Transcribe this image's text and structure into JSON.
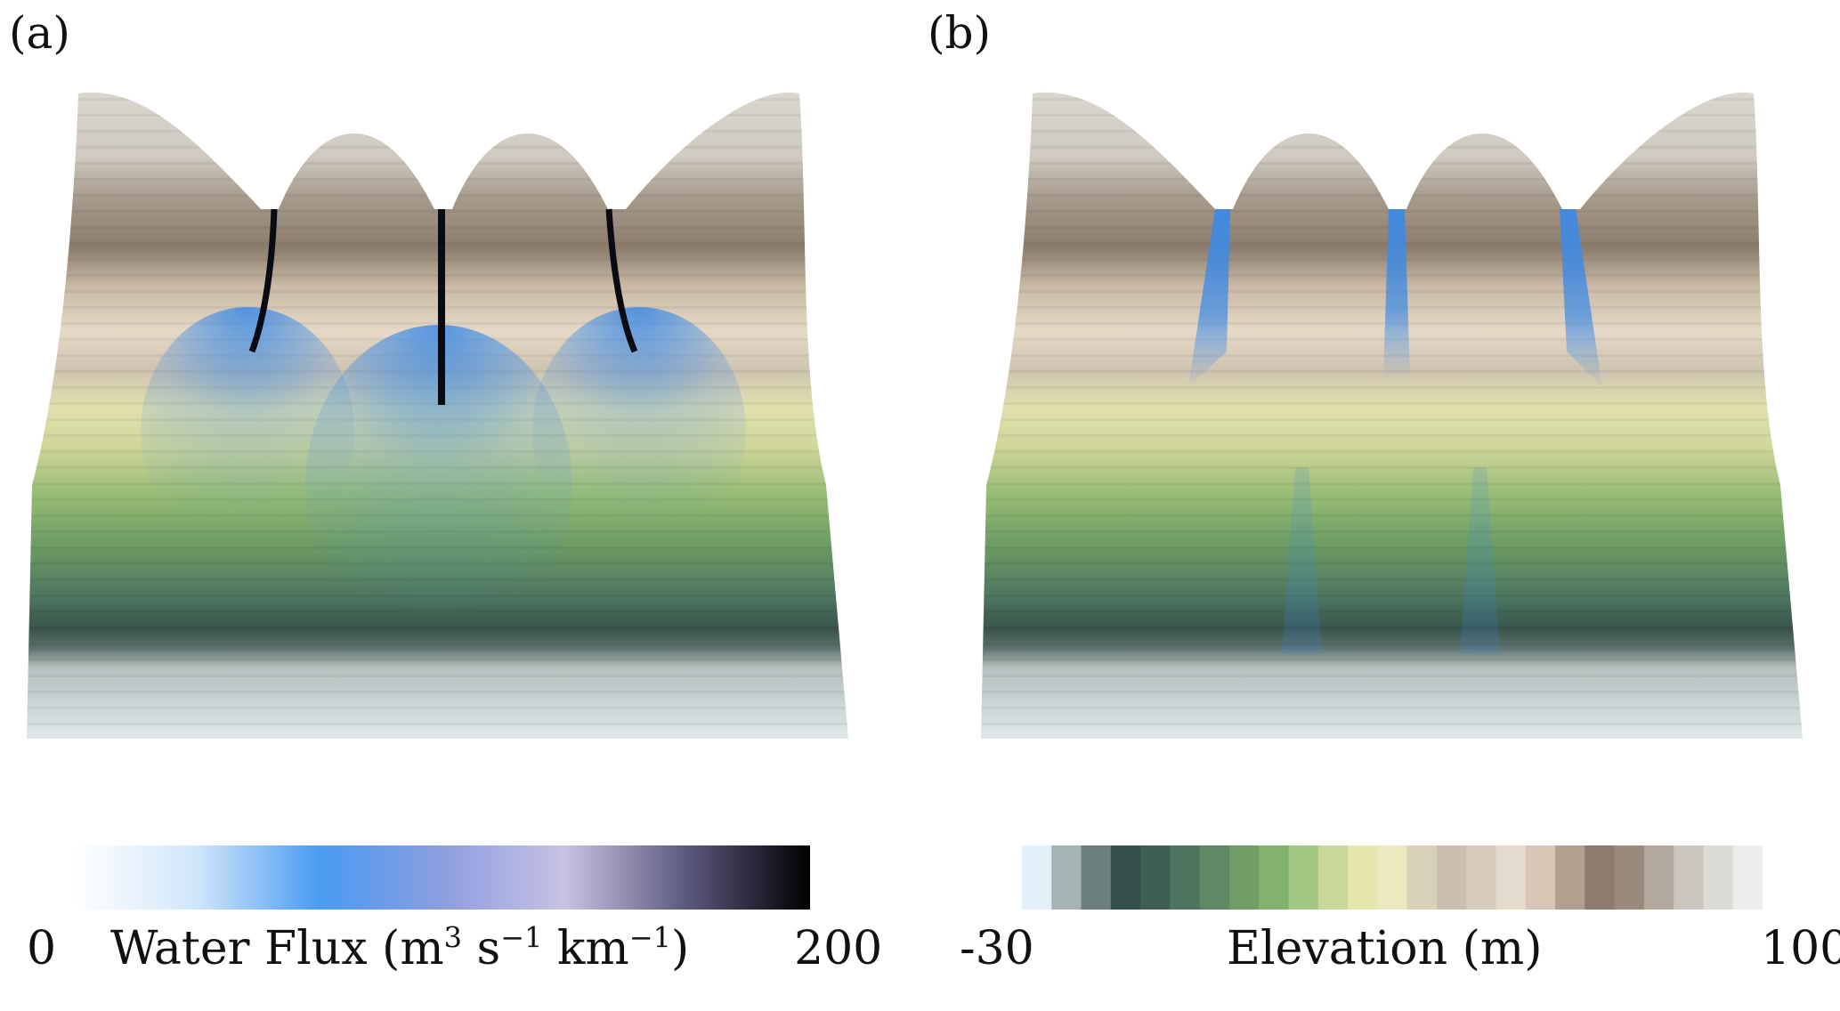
{
  "panels": [
    {
      "label": "(a)"
    },
    {
      "label": "(b)"
    }
  ],
  "colorbars": {
    "flux": {
      "min": "0",
      "max": "200",
      "title_main": "Water Flux (m",
      "title_exp1": "3",
      "title_s": " s",
      "title_exp2": "−1",
      "title_km": " km",
      "title_exp3": "−1",
      "title_end": ")",
      "colors": [
        "#ffffff",
        "#cfe6fb",
        "#4a9bf0",
        "#8c9de0",
        "#c7c3e2",
        "#5b587e",
        "#000000"
      ]
    },
    "elevation": {
      "min": "-30",
      "max": "100",
      "title": "Elevation (m)",
      "colors": [
        "#e3f0fa",
        "#a7b4b4",
        "#6b7f7d",
        "#34504a",
        "#3e5f52",
        "#4c7660",
        "#5d8a65",
        "#6e9e66",
        "#82b36e",
        "#a2c783",
        "#cbd89b",
        "#e4e6ae",
        "#ebe9bd",
        "#d9d2b8",
        "#cbbfb0",
        "#d8cbbb",
        "#e5dbcc",
        "#d7c6b4",
        "#b39f8e",
        "#8f7b6c",
        "#9a8a7c",
        "#b2a89c",
        "#cac6bd",
        "#dcdbd5",
        "#ecedea"
      ]
    }
  },
  "colors": {
    "water": "#3c8ae6",
    "channel": "#0a0a12"
  }
}
